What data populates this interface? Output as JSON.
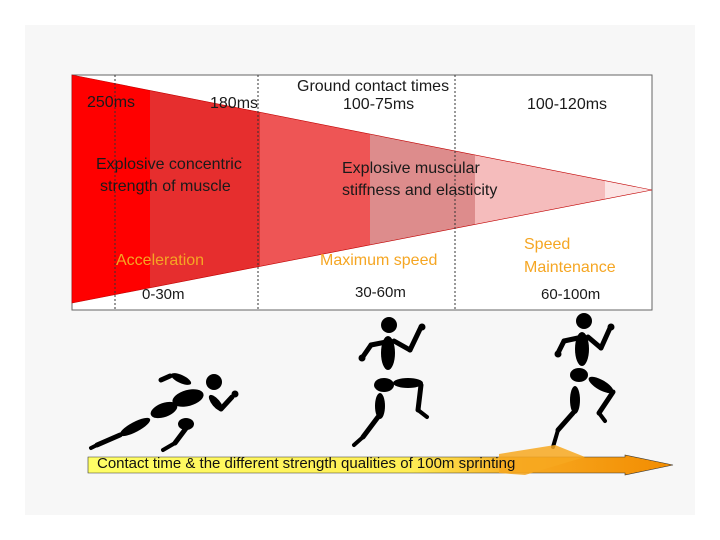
{
  "diagram": {
    "header": {
      "ground_contact_title": "Ground contact times",
      "time_1": "250ms",
      "time_2": "180ms",
      "time_3": "100-75ms",
      "time_4": "100-120ms"
    },
    "qualities": {
      "quality_1_line_1": "Explosive concentric",
      "quality_1_line_2": "strength of muscle",
      "quality_2_line_1": "Explosive muscular",
      "quality_2_line_2": "stiffness and elasticity"
    },
    "phases": {
      "phase_1": "Acceleration",
      "phase_2": "Maximum speed",
      "phase_3_line_1": "Speed",
      "phase_3_line_2": "Maintenance"
    },
    "distances": {
      "distance_1": "0-30m",
      "distance_2": "30-60m",
      "distance_3": "60-100m"
    },
    "caption": "Contact time & the different strength qualities of 100m sprinting",
    "colors": {
      "zone_1": "#ff0000",
      "zone_2": "#e62e2e",
      "zone_3": "#ee5555",
      "zone_4": "#dd8c8c",
      "zone_5": "#f5bcbc",
      "accent_orange": "#f5a623",
      "arrow_yellow": "#ffff66",
      "arrow_orange": "#f28c00"
    }
  }
}
